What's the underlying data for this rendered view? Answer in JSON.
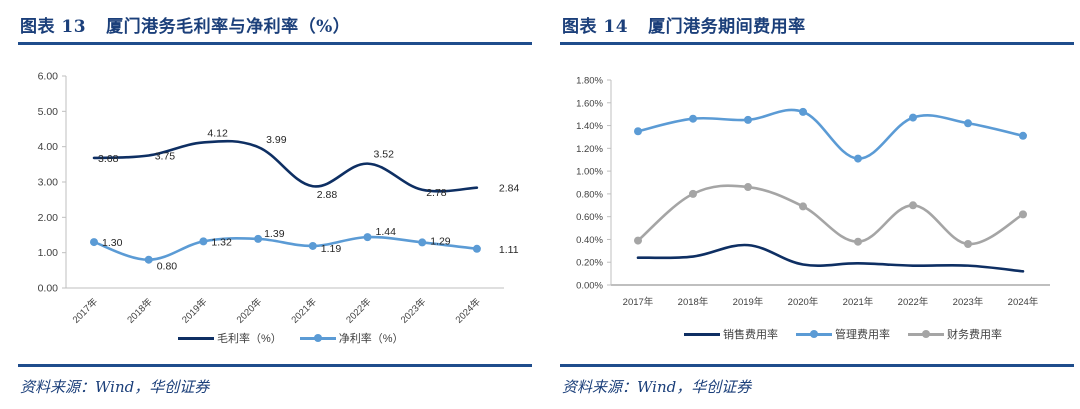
{
  "left_panel": {
    "figure_no": "图表 13",
    "title": "厦门港务毛利率与净利率（%）",
    "source": "资料来源：Wind，华创证券"
  },
  "right_panel": {
    "figure_no": "图表 14",
    "title": "厦门港务期间费用率",
    "source": "资料来源：Wind，华创证券"
  },
  "chart_data": [
    {
      "type": "line",
      "title": "厦门港务毛利率与净利率（%）",
      "categories": [
        "2017年",
        "2018年",
        "2019年",
        "2020年",
        "2021年",
        "2022年",
        "2023年",
        "2024年"
      ],
      "ylim": [
        0,
        6
      ],
      "yticks": [
        "0.00",
        "1.00",
        "2.00",
        "3.00",
        "4.00",
        "5.00",
        "6.00"
      ],
      "xlabel": "",
      "ylabel": "",
      "grid": false,
      "legend_position": "bottom",
      "x_tick_rotation": "diagonal",
      "series": [
        {
          "name": "毛利率（%）",
          "color": "#0e2f63",
          "markers": false,
          "smooth": true,
          "values": [
            3.68,
            3.75,
            4.12,
            3.99,
            2.88,
            3.52,
            2.78,
            2.84
          ],
          "labels": [
            "3.68",
            "3.75",
            "4.12",
            "3.99",
            "2.88",
            "3.52",
            "2.78",
            "2.84"
          ]
        },
        {
          "name": "净利率（%）",
          "color": "#5b9bd5",
          "markers": true,
          "smooth": true,
          "values": [
            1.3,
            0.8,
            1.32,
            1.39,
            1.19,
            1.44,
            1.29,
            1.11
          ],
          "labels": [
            "1.30",
            "0.80",
            "1.32",
            "1.39",
            "1.19",
            "1.44",
            "1.29",
            "1.11"
          ]
        }
      ]
    },
    {
      "type": "line",
      "title": "厦门港务期间费用率",
      "categories": [
        "2017年",
        "2018年",
        "2019年",
        "2020年",
        "2021年",
        "2022年",
        "2023年",
        "2024年"
      ],
      "ylim": [
        0,
        1.8
      ],
      "yticks": [
        "0.00%",
        "0.20%",
        "0.40%",
        "0.60%",
        "0.80%",
        "1.00%",
        "1.20%",
        "1.40%",
        "1.60%",
        "1.80%"
      ],
      "unit": "%",
      "xlabel": "",
      "ylabel": "",
      "grid": false,
      "legend_position": "bottom",
      "series": [
        {
          "name": "销售费用率",
          "color": "#0e2f63",
          "markers": false,
          "smooth": true,
          "values": [
            0.24,
            0.25,
            0.35,
            0.18,
            0.19,
            0.17,
            0.17,
            0.12
          ]
        },
        {
          "name": "管理费用率",
          "color": "#5b9bd5",
          "markers": true,
          "smooth": true,
          "values": [
            1.35,
            1.46,
            1.45,
            1.52,
            1.11,
            1.47,
            1.42,
            1.31
          ]
        },
        {
          "name": "财务费用率",
          "color": "#a5a5a5",
          "markers": true,
          "smooth": true,
          "values": [
            0.39,
            0.8,
            0.86,
            0.69,
            0.38,
            0.7,
            0.36,
            0.62
          ]
        }
      ]
    }
  ]
}
